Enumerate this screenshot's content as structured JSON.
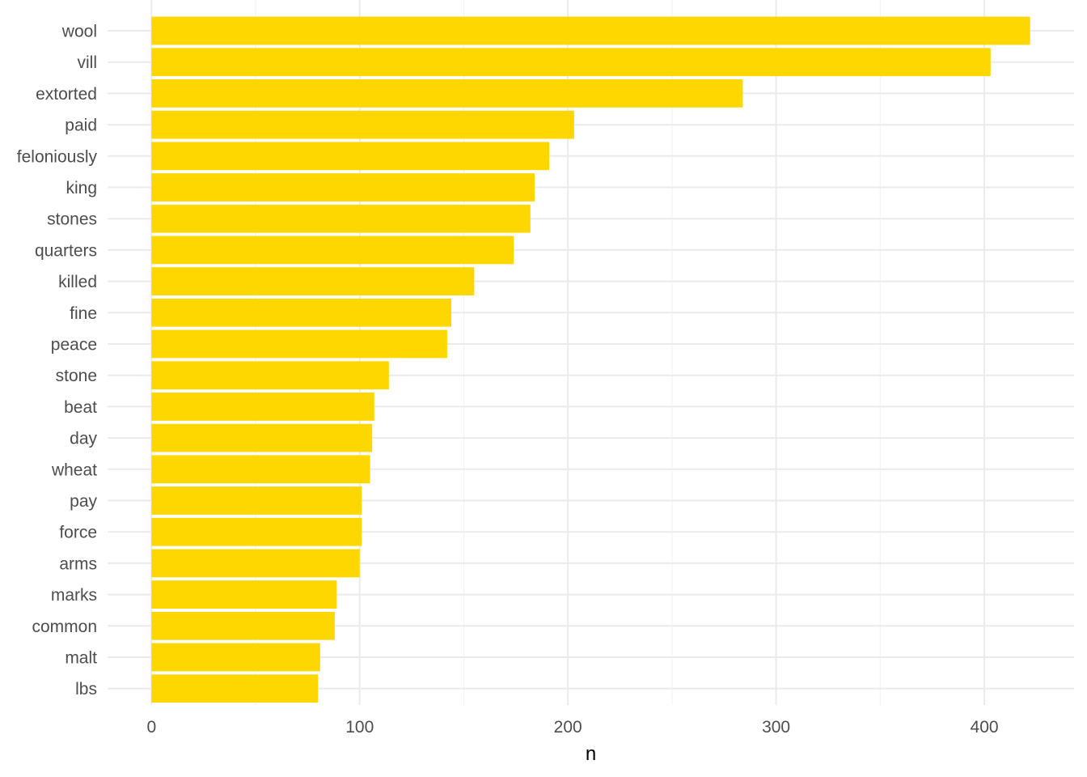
{
  "chart_data": {
    "type": "bar",
    "orientation": "horizontal",
    "title": "",
    "xlabel": "n",
    "ylabel": "",
    "categories": [
      "wool",
      "vill",
      "extorted",
      "paid",
      "feloniously",
      "king",
      "stones",
      "quarters",
      "killed",
      "fine",
      "peace",
      "stone",
      "beat",
      "day",
      "wheat",
      "pay",
      "force",
      "arms",
      "marks",
      "common",
      "malt",
      "lbs"
    ],
    "values": [
      422,
      403,
      284,
      203,
      191,
      184,
      182,
      174,
      155,
      144,
      142,
      114,
      107,
      106,
      105,
      101,
      101,
      100,
      89,
      88,
      81,
      80
    ],
    "xlim": [
      -21.1,
      443.1
    ],
    "x_ticks": [
      0,
      100,
      200,
      300,
      400
    ],
    "x_tick_labels": [
      "0",
      "100",
      "200",
      "300",
      "400"
    ],
    "x_minor_ticks": [
      50,
      150,
      250,
      350
    ],
    "grid": true,
    "legend": "none",
    "bar_color": "#FFD700"
  }
}
